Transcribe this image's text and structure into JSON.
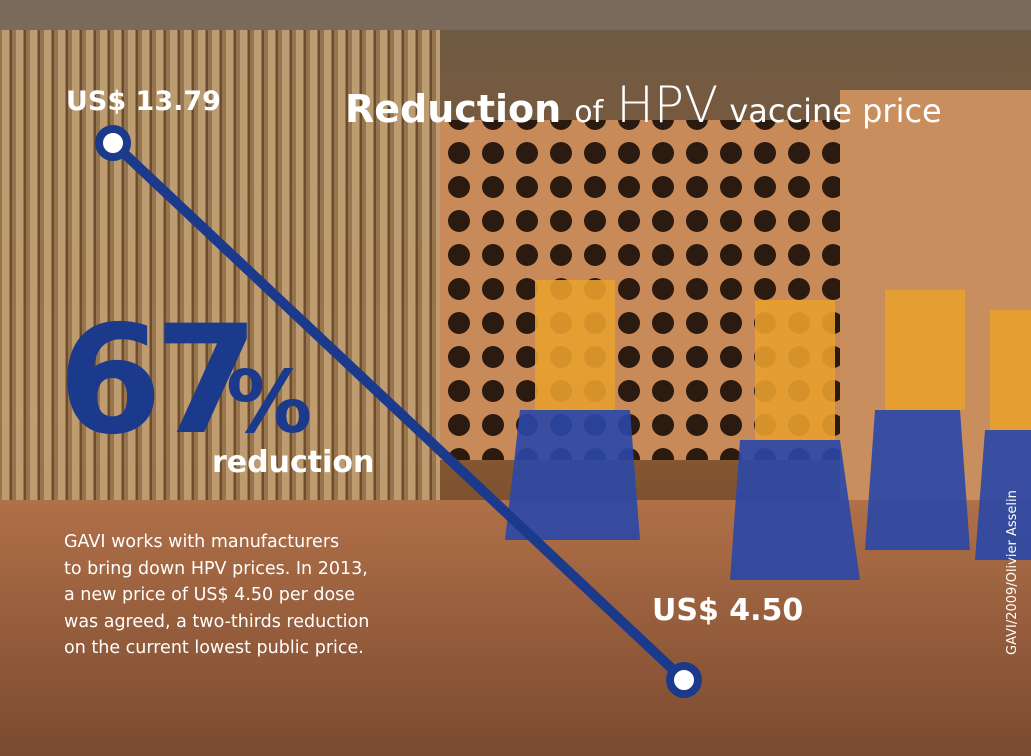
{
  "header": {
    "title": {
      "bold": "Reduction",
      "of": "of",
      "hpv": "HPV",
      "rest": "vaccine price"
    }
  },
  "prices": {
    "before": "US$ 13.79",
    "after": "US$ 4.50"
  },
  "reduction": {
    "number": "67",
    "percent": "%",
    "label": "reduction"
  },
  "body": {
    "lines": [
      "GAVI works with manufacturers",
      "to bring down HPV prices. In 2013,",
      "a new price of US$ 4.50 per dose",
      "was agreed, a two-thirds reduction",
      "on the current lowest public price."
    ]
  },
  "credit": "GAVI/2009/Olivier Asselin"
}
